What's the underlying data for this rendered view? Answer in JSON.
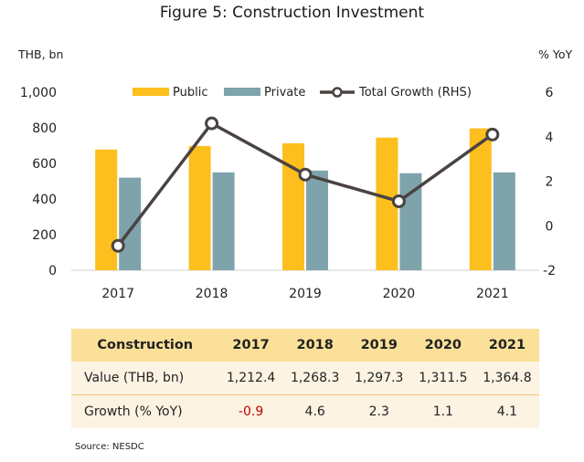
{
  "title": "Figure 5: Construction Investment",
  "chart_data": {
    "type": "bar",
    "categories": [
      "2017",
      "2018",
      "2019",
      "2020",
      "2021"
    ],
    "series": [
      {
        "name": "Public",
        "type": "bar",
        "axis": "left",
        "color": "#fdbf1e",
        "values": [
          678,
          698,
          713,
          745,
          797
        ]
      },
      {
        "name": "Private",
        "type": "bar",
        "axis": "left",
        "color": "#7ea3ab",
        "values": [
          520,
          550,
          560,
          545,
          550
        ]
      },
      {
        "name": "Total Growth (RHS)",
        "type": "line",
        "axis": "right",
        "color": "#4a4341",
        "values": [
          -0.9,
          4.6,
          2.3,
          1.1,
          4.1
        ]
      }
    ],
    "ylabel_left": "THB, bn",
    "ylabel_right": "% YoY",
    "ylim_left": [
      0,
      1000
    ],
    "yticks_left": [
      "0",
      "200",
      "400",
      "600",
      "800",
      "1,000"
    ],
    "ylim_right": [
      -2,
      6
    ],
    "yticks_right": [
      "-2",
      "0",
      "2",
      "4",
      "6"
    ],
    "grid": false,
    "legend_position": "top"
  },
  "table": {
    "headers": [
      "Construction",
      "2017",
      "2018",
      "2019",
      "2020",
      "2021"
    ],
    "rows": [
      {
        "label": "Value (THB, bn)",
        "cells": [
          "1,212.4",
          "1,268.3",
          "1,297.3",
          "1,311.5",
          "1,364.8"
        ],
        "negative": [
          false,
          false,
          false,
          false,
          false
        ]
      },
      {
        "label": "Growth (% YoY)",
        "cells": [
          "-0.9",
          "4.6",
          "2.3",
          "1.1",
          "4.1"
        ],
        "negative": [
          true,
          false,
          false,
          false,
          false
        ]
      }
    ]
  },
  "source": "Source: NESDC"
}
